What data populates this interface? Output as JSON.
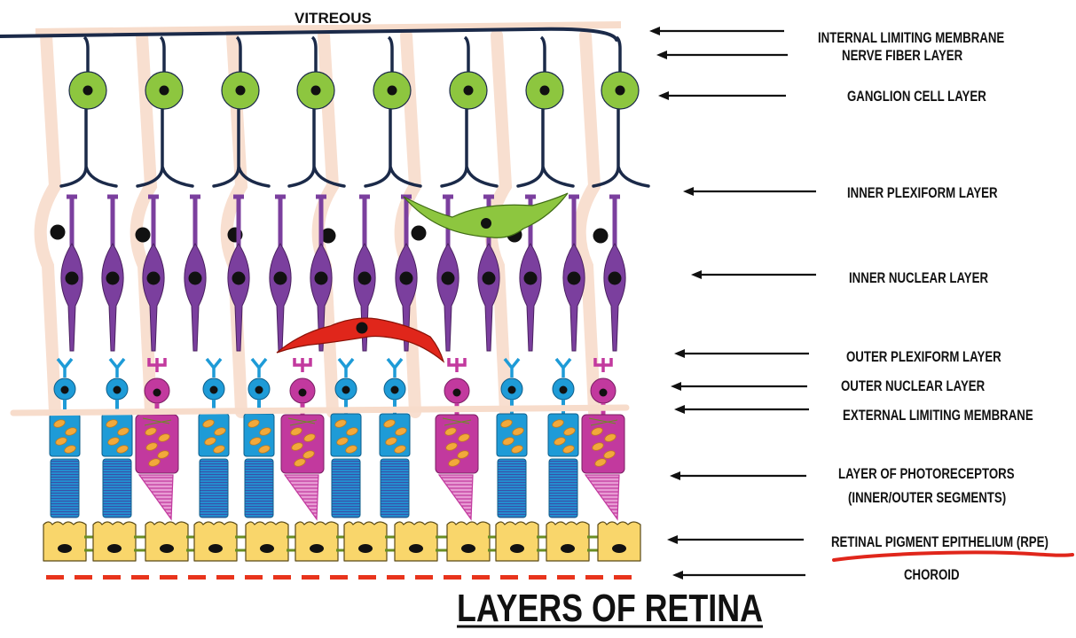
{
  "diagram": {
    "title": "LAYERS OF RETINA",
    "top_label": "VITREOUS",
    "layers": [
      {
        "label": "INTERNAL LIMITING MEMBRANE"
      },
      {
        "label": "NERVE FIBER LAYER"
      },
      {
        "label": "GANGLION CELL LAYER"
      },
      {
        "label": "INNER PLEXIFORM LAYER"
      },
      {
        "label": "INNER NUCLEAR LAYER"
      },
      {
        "label": "OUTER PLEXIFORM LAYER"
      },
      {
        "label": "OUTER NUCLEAR LAYER"
      },
      {
        "label": "EXTERNAL LIMITING MEMBRANE"
      },
      {
        "label": "LAYER OF PHOTORECEPTORS",
        "label_line2": "(INNER/OUTER SEGMENTS)"
      },
      {
        "label": "RETINAL PIGMENT EPITHELIUM (RPE)",
        "highlighted": true
      },
      {
        "label": "CHOROID"
      }
    ],
    "colors": {
      "ganglion": "#8DC63F",
      "bipolar": "#7B3F9E",
      "rod": "#1E9BD7",
      "rod_segment": "#3A5BB0",
      "cone": "#C2399E",
      "cone_body": "#C2399E",
      "pigment": "#F2A93B",
      "rpe": "#F9D66B",
      "rpe_junction": "#6B8E23",
      "amacrine": "#8DC63F",
      "horizontal": "#E0261B",
      "muller": "#F7DCCB",
      "axon": "#1B2A49",
      "choroid": "#E8341C",
      "highlight": "#E0261B"
    }
  }
}
